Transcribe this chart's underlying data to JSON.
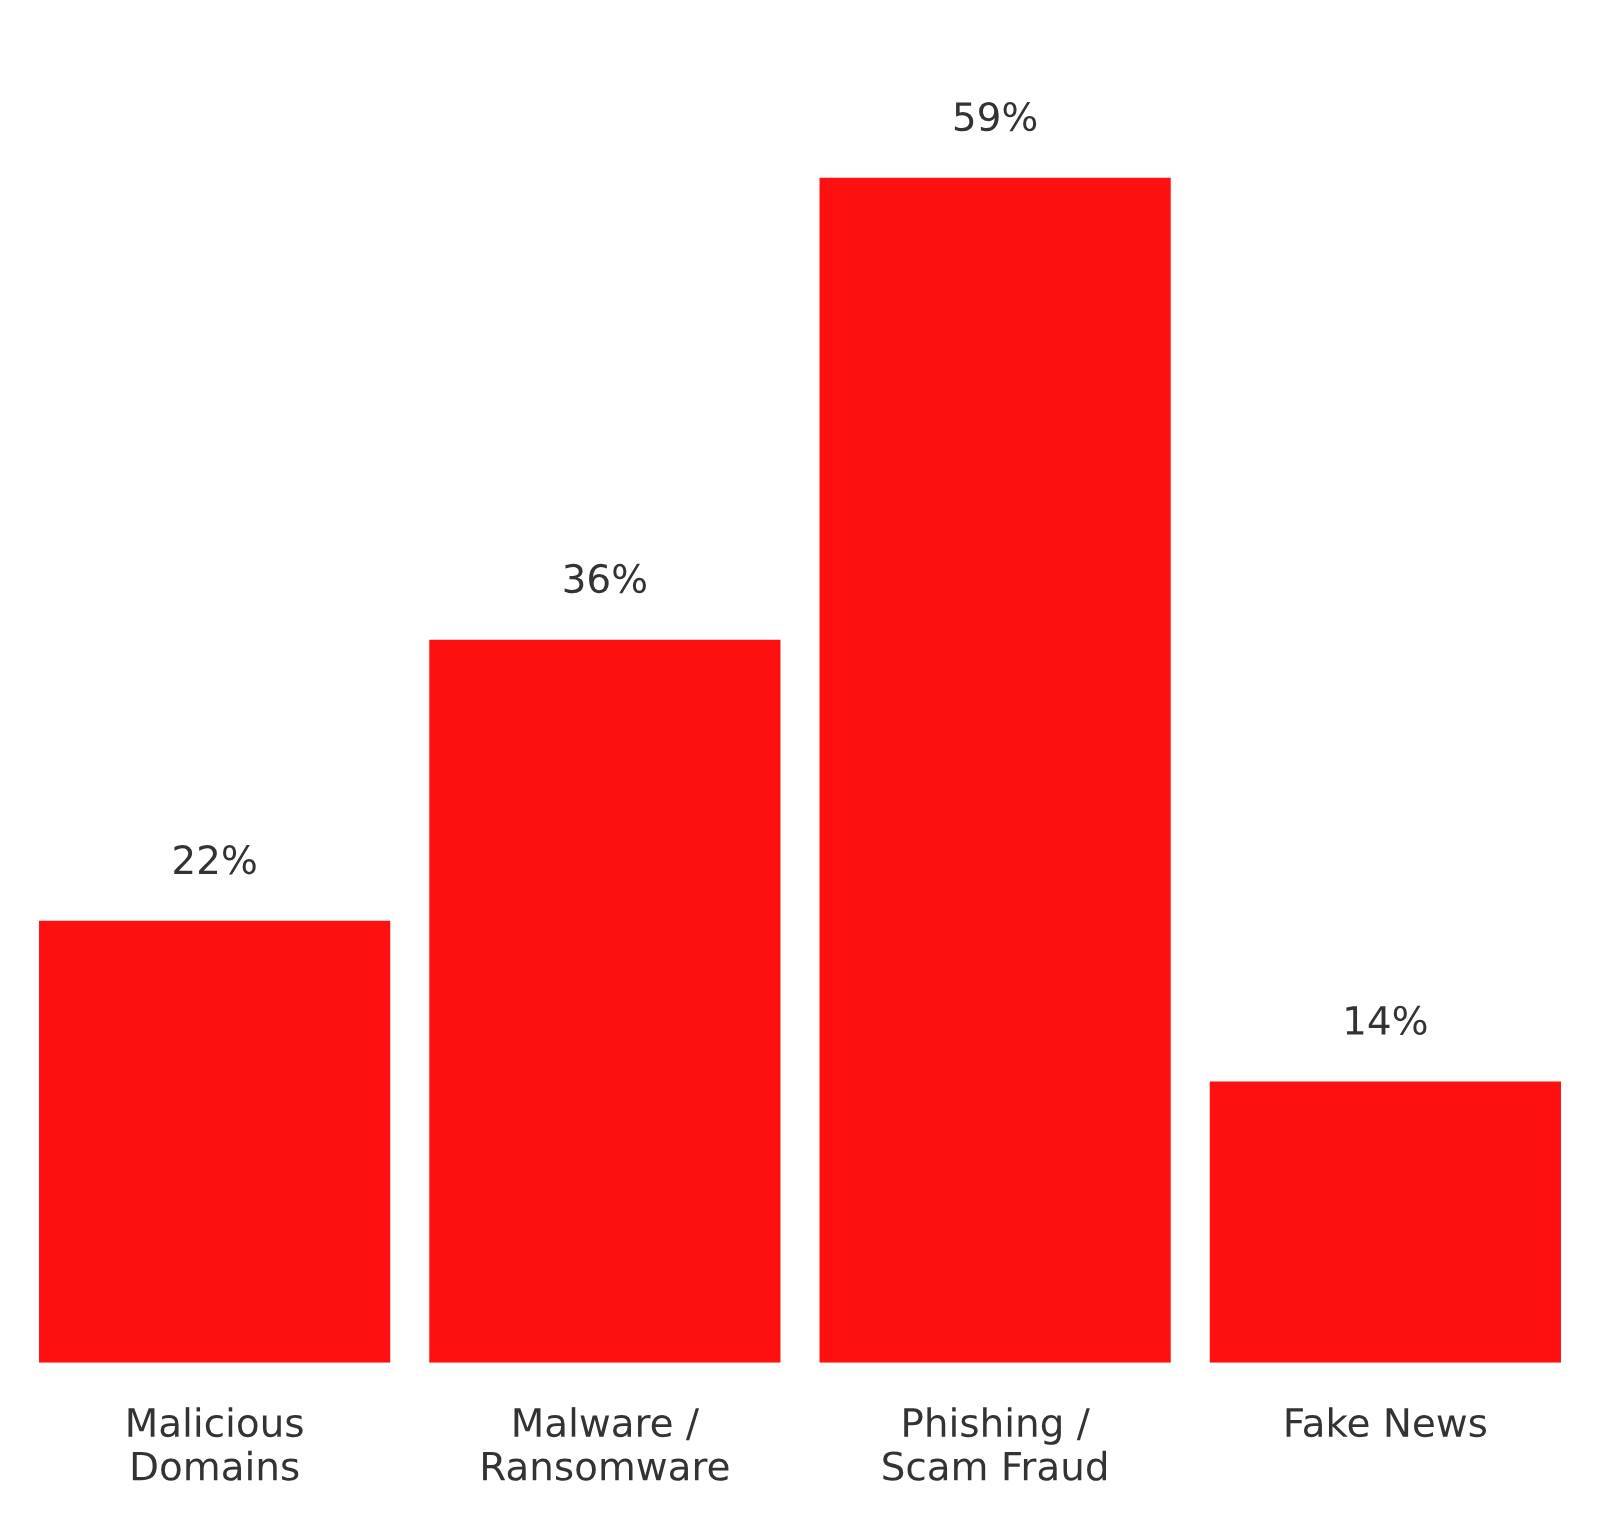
{
  "chart_data": {
    "type": "bar",
    "categories": [
      "Malicious\nDomains",
      "Malware /\nRansomware",
      "Phishing /\nScam Fraud",
      "Fake News"
    ],
    "values": [
      22,
      36,
      59,
      14
    ],
    "value_labels": [
      "22%",
      "36%",
      "59%",
      "14%"
    ],
    "color": "#ff1010",
    "grid": false,
    "legend": false
  }
}
